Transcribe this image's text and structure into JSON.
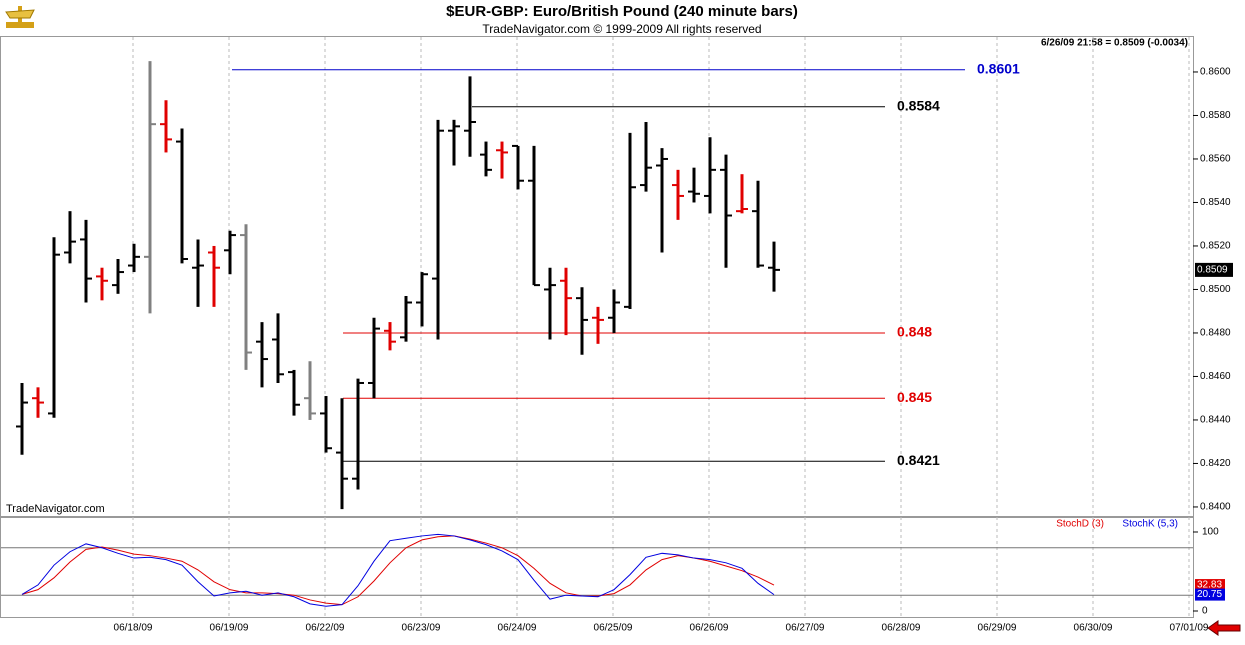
{
  "header": {
    "title": "$EUR-GBP:  Euro/British Pound  (240 minute bars)",
    "subtitle": "TradeNavigator.com © 1999-2009 All rights reserved"
  },
  "chart_data": [
    {
      "type": "ohlc",
      "info": "6/26/09 21:58 = 0.8509 (-0.0034)",
      "watermark": "TradeNavigator.com",
      "last_price": 0.8509,
      "ylim": [
        0.83963,
        0.86147
      ],
      "yticks": [
        {
          "value": 0.84,
          "label": "0.8400"
        },
        {
          "value": 0.842,
          "label": "0.8420"
        },
        {
          "value": 0.844,
          "label": "0.8440"
        },
        {
          "value": 0.846,
          "label": "0.8460"
        },
        {
          "value": 0.848,
          "label": "0.8480"
        },
        {
          "value": 0.85,
          "label": "0.8500"
        },
        {
          "value": 0.852,
          "label": "0.8520"
        },
        {
          "value": 0.854,
          "label": "0.8540"
        },
        {
          "value": 0.856,
          "label": "0.8560"
        },
        {
          "value": 0.858,
          "label": "0.8580"
        },
        {
          "value": 0.86,
          "label": "0.8600"
        }
      ],
      "xticks": [
        "06/18/09",
        "06/19/09",
        "06/22/09",
        "06/23/09",
        "06/24/09",
        "06/25/09",
        "06/26/09",
        "06/27/09",
        "06/28/09",
        "06/29/09",
        "06/30/09",
        "07/01/09"
      ],
      "levels": [
        {
          "value": 0.8601,
          "color": "#0000cc"
        },
        {
          "value": 0.8584,
          "color": "#000000"
        },
        {
          "value": 0.848,
          "color": "#e00000"
        },
        {
          "value": 0.845,
          "color": "#e00000"
        },
        {
          "value": 0.8421,
          "color": "#000000"
        }
      ],
      "open": [
        0.8437,
        0.845,
        0.8443,
        0.8517,
        0.8523,
        0.8506,
        0.8502,
        0.8511,
        0.8515,
        0.8576,
        0.8568,
        0.851,
        0.8517,
        0.8518,
        0.8525,
        0.8476,
        0.8477,
        0.8462,
        0.845,
        0.8443,
        0.8425,
        0.8413,
        0.8457,
        0.8481,
        0.8478,
        0.8494,
        0.8505,
        0.8573,
        0.8573,
        0.8562,
        0.8564,
        0.8566,
        0.855,
        0.85,
        0.8504,
        0.8496,
        0.8487,
        0.8487,
        0.8492,
        0.8548,
        0.8557,
        0.8548,
        0.8545,
        0.8543,
        0.8555,
        0.8536,
        0.8536,
        0.851
      ],
      "high": [
        0.8457,
        0.8455,
        0.8524,
        0.8536,
        0.8532,
        0.851,
        0.8514,
        0.8521,
        0.8605,
        0.8587,
        0.8574,
        0.8523,
        0.852,
        0.8527,
        0.853,
        0.8485,
        0.8489,
        0.8463,
        0.8467,
        0.8451,
        0.845,
        0.8459,
        0.8487,
        0.8485,
        0.8497,
        0.8508,
        0.8578,
        0.8578,
        0.8598,
        0.8568,
        0.8568,
        0.8566,
        0.8566,
        0.851,
        0.851,
        0.8501,
        0.8492,
        0.85,
        0.8572,
        0.8577,
        0.8565,
        0.8555,
        0.8556,
        0.857,
        0.8562,
        0.8553,
        0.855,
        0.8522
      ],
      "low": [
        0.8424,
        0.8441,
        0.8441,
        0.8512,
        0.8494,
        0.8495,
        0.8498,
        0.8508,
        0.8489,
        0.8563,
        0.8512,
        0.8492,
        0.8492,
        0.8507,
        0.8463,
        0.8455,
        0.8457,
        0.8442,
        0.844,
        0.8425,
        0.8399,
        0.8408,
        0.845,
        0.8472,
        0.8476,
        0.8483,
        0.8477,
        0.8557,
        0.8561,
        0.8552,
        0.8551,
        0.8546,
        0.8502,
        0.8477,
        0.8479,
        0.847,
        0.8475,
        0.848,
        0.8491,
        0.8545,
        0.8517,
        0.8532,
        0.854,
        0.8535,
        0.851,
        0.8535,
        0.851,
        0.8499
      ],
      "close": [
        0.8448,
        0.8448,
        0.8516,
        0.8522,
        0.8505,
        0.8504,
        0.8508,
        0.8515,
        0.8576,
        0.8569,
        0.8514,
        0.8511,
        0.851,
        0.8525,
        0.8471,
        0.8468,
        0.8461,
        0.8447,
        0.8443,
        0.8427,
        0.8413,
        0.8457,
        0.8482,
        0.8476,
        0.8494,
        0.8507,
        0.8573,
        0.8575,
        0.8577,
        0.8555,
        0.8563,
        0.855,
        0.8502,
        0.8502,
        0.8496,
        0.8486,
        0.8486,
        0.8494,
        0.8547,
        0.8556,
        0.856,
        0.8543,
        0.8544,
        0.8555,
        0.8534,
        0.8537,
        0.8511,
        0.8509
      ],
      "colors": [
        "#000",
        "#e00000",
        "#000",
        "#000",
        "#000",
        "#e00000",
        "#000",
        "#000",
        "#808080",
        "#e00000",
        "#000",
        "#000",
        "#e00000",
        "#000",
        "#808080",
        "#000",
        "#000",
        "#000",
        "#808080",
        "#000",
        "#000",
        "#000",
        "#000",
        "#e00000",
        "#000",
        "#000",
        "#000",
        "#000",
        "#000",
        "#000",
        "#e00000",
        "#000",
        "#000",
        "#000",
        "#e00000",
        "#000",
        "#e00000",
        "#000",
        "#000",
        "#000",
        "#000",
        "#e00000",
        "#000",
        "#000",
        "#000",
        "#e00000",
        "#000",
        "#000"
      ]
    },
    {
      "type": "line",
      "ylim": [
        -7.6,
        117.7
      ],
      "yticks": [
        0,
        100
      ],
      "reference_lines": [
        20,
        80
      ],
      "series": [
        {
          "name": "StochD (3)",
          "color": "#e00000",
          "values": [
            21,
            27,
            42,
            62,
            78,
            81,
            77,
            72,
            70,
            67,
            63,
            52,
            37,
            27,
            23,
            23,
            22,
            20,
            14,
            10,
            8,
            18,
            38,
            61,
            80,
            90,
            94,
            95,
            91,
            86,
            80,
            70,
            54,
            35,
            23,
            19,
            19,
            22,
            33,
            52,
            65,
            70,
            67,
            63,
            57,
            51,
            43,
            32.83
          ]
        },
        {
          "name": "StochK (5,3)",
          "color": "#0000e0",
          "values": [
            21,
            33,
            58,
            75,
            85,
            80,
            73,
            67,
            68,
            65,
            58,
            37,
            19,
            23,
            25,
            20,
            23,
            18,
            9,
            6,
            8,
            32,
            63,
            89,
            92,
            95,
            97,
            95,
            90,
            84,
            76,
            65,
            39,
            15,
            20,
            19,
            18,
            27,
            46,
            68,
            73,
            71,
            67,
            65,
            61,
            54,
            35,
            20.75
          ]
        }
      ]
    }
  ]
}
